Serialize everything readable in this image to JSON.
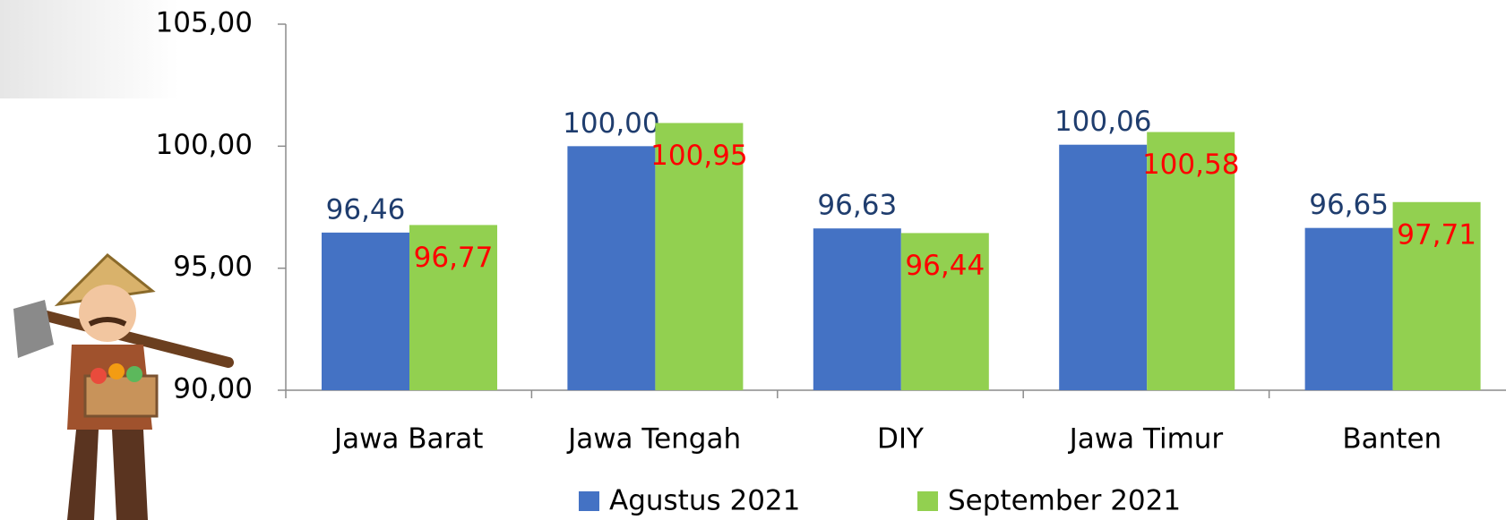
{
  "chart_data": {
    "type": "bar",
    "categories": [
      "Jawa Barat",
      "Jawa Tengah",
      "DIY",
      "Jawa Timur",
      "Banten"
    ],
    "series": [
      {
        "name": "Agustus 2021",
        "color": "#4472c4",
        "label_color": "#1f3d6e",
        "values": [
          96.46,
          100.0,
          96.63,
          100.06,
          96.65
        ],
        "value_labels": [
          "96,46",
          "100,00",
          "96,63",
          "100,06",
          "96,65"
        ]
      },
      {
        "name": "September 2021",
        "color": "#92d050",
        "label_color": "#ff0000",
        "values": [
          96.77,
          100.95,
          96.44,
          100.58,
          97.71
        ],
        "value_labels": [
          "96,77",
          "100,95",
          "96,44",
          "100,58",
          "97,71"
        ]
      }
    ],
    "ylim": [
      90,
      105
    ],
    "yticks": [
      {
        "value": 90,
        "label": "90,00"
      },
      {
        "value": 95,
        "label": "95,00"
      },
      {
        "value": 100,
        "label": "100,00"
      },
      {
        "value": 105,
        "label": "105,00"
      }
    ],
    "grid": false,
    "legend": "bottom"
  }
}
